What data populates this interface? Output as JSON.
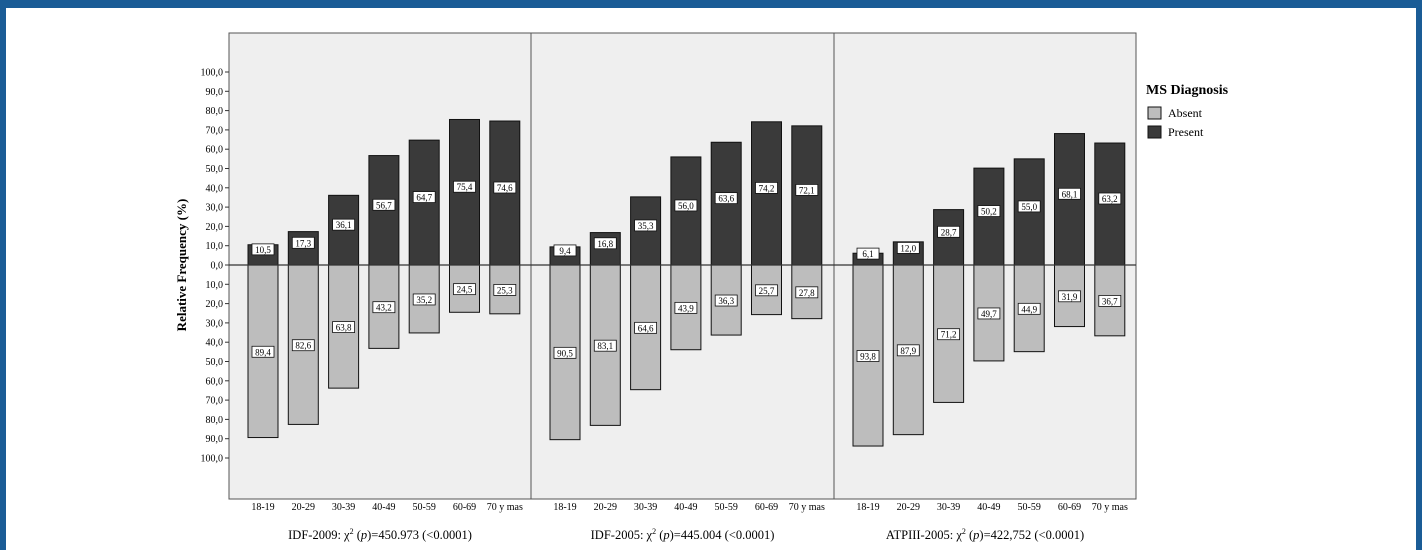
{
  "chart_data": {
    "type": "bar",
    "ylabel": "Relative Frequency (%)",
    "yticks": [
      "100,0",
      "90,0",
      "80,0",
      "70,0",
      "60,0",
      "50,0",
      "40,0",
      "30,0",
      "20,0",
      "10,0",
      "0,0",
      "10,0",
      "20,0",
      "30,0",
      "40,0",
      "50,0",
      "60,0",
      "70,0",
      "80,0",
      "90,0",
      "100,0"
    ],
    "ylim": [
      -100,
      100
    ],
    "categories": [
      "18-19",
      "20-29",
      "30-39",
      "40-49",
      "50-59",
      "60-69",
      "70 y mas"
    ],
    "legend": {
      "title": "MS Diagnosis",
      "items": [
        {
          "name": "Absent",
          "color": "#bdbdbd"
        },
        {
          "name": "Present",
          "color": "#3a3a3a"
        }
      ],
      "placement": "right"
    },
    "panels": [
      {
        "stat_name": "IDF-2009",
        "stat_value": "=450.973 (<0.0001)",
        "present": [
          10.5,
          17.3,
          36.1,
          56.7,
          64.7,
          75.4,
          74.6
        ],
        "present_labels": [
          "10,5",
          "17,3",
          "36,1",
          "56,7",
          "64,7",
          "75,4",
          "74,6"
        ],
        "absent": [
          89.4,
          82.6,
          63.8,
          43.2,
          35.2,
          24.5,
          25.3
        ],
        "absent_labels": [
          "89,4",
          "82,6",
          "63,8",
          "43,2",
          "35,2",
          "24,5",
          "25,3"
        ]
      },
      {
        "stat_name": "IDF-2005",
        "stat_value": "=445.004 (<0.0001)",
        "present": [
          9.4,
          16.8,
          35.3,
          56.0,
          63.6,
          74.2,
          72.1
        ],
        "present_labels": [
          "9,4",
          "16,8",
          "35,3",
          "56,0",
          "63,6",
          "74,2",
          "72,1"
        ],
        "absent": [
          90.5,
          83.1,
          64.6,
          43.9,
          36.3,
          25.7,
          27.8
        ],
        "absent_labels": [
          "90,5",
          "83,1",
          "64,6",
          "43,9",
          "36,3",
          "25,7",
          "27,8"
        ]
      },
      {
        "stat_name": "ATPIII-2005",
        "stat_value": "=422,752 (<0.0001)",
        "present": [
          6.1,
          12.0,
          28.7,
          50.2,
          55.0,
          68.1,
          63.2
        ],
        "present_labels": [
          "6,1",
          "12,0",
          "28,7",
          "50,2",
          "55,0",
          "68,1",
          "63,2"
        ],
        "absent": [
          93.8,
          87.9,
          71.2,
          49.7,
          44.9,
          31.9,
          36.7
        ],
        "absent_labels": [
          "93,8",
          "87,9",
          "71,2",
          "49,7",
          "44,9",
          "31,9",
          "36,7"
        ]
      }
    ],
    "colors": {
      "plot_bg": "#efefef",
      "absent": "#bdbdbd",
      "present": "#3a3a3a"
    }
  }
}
